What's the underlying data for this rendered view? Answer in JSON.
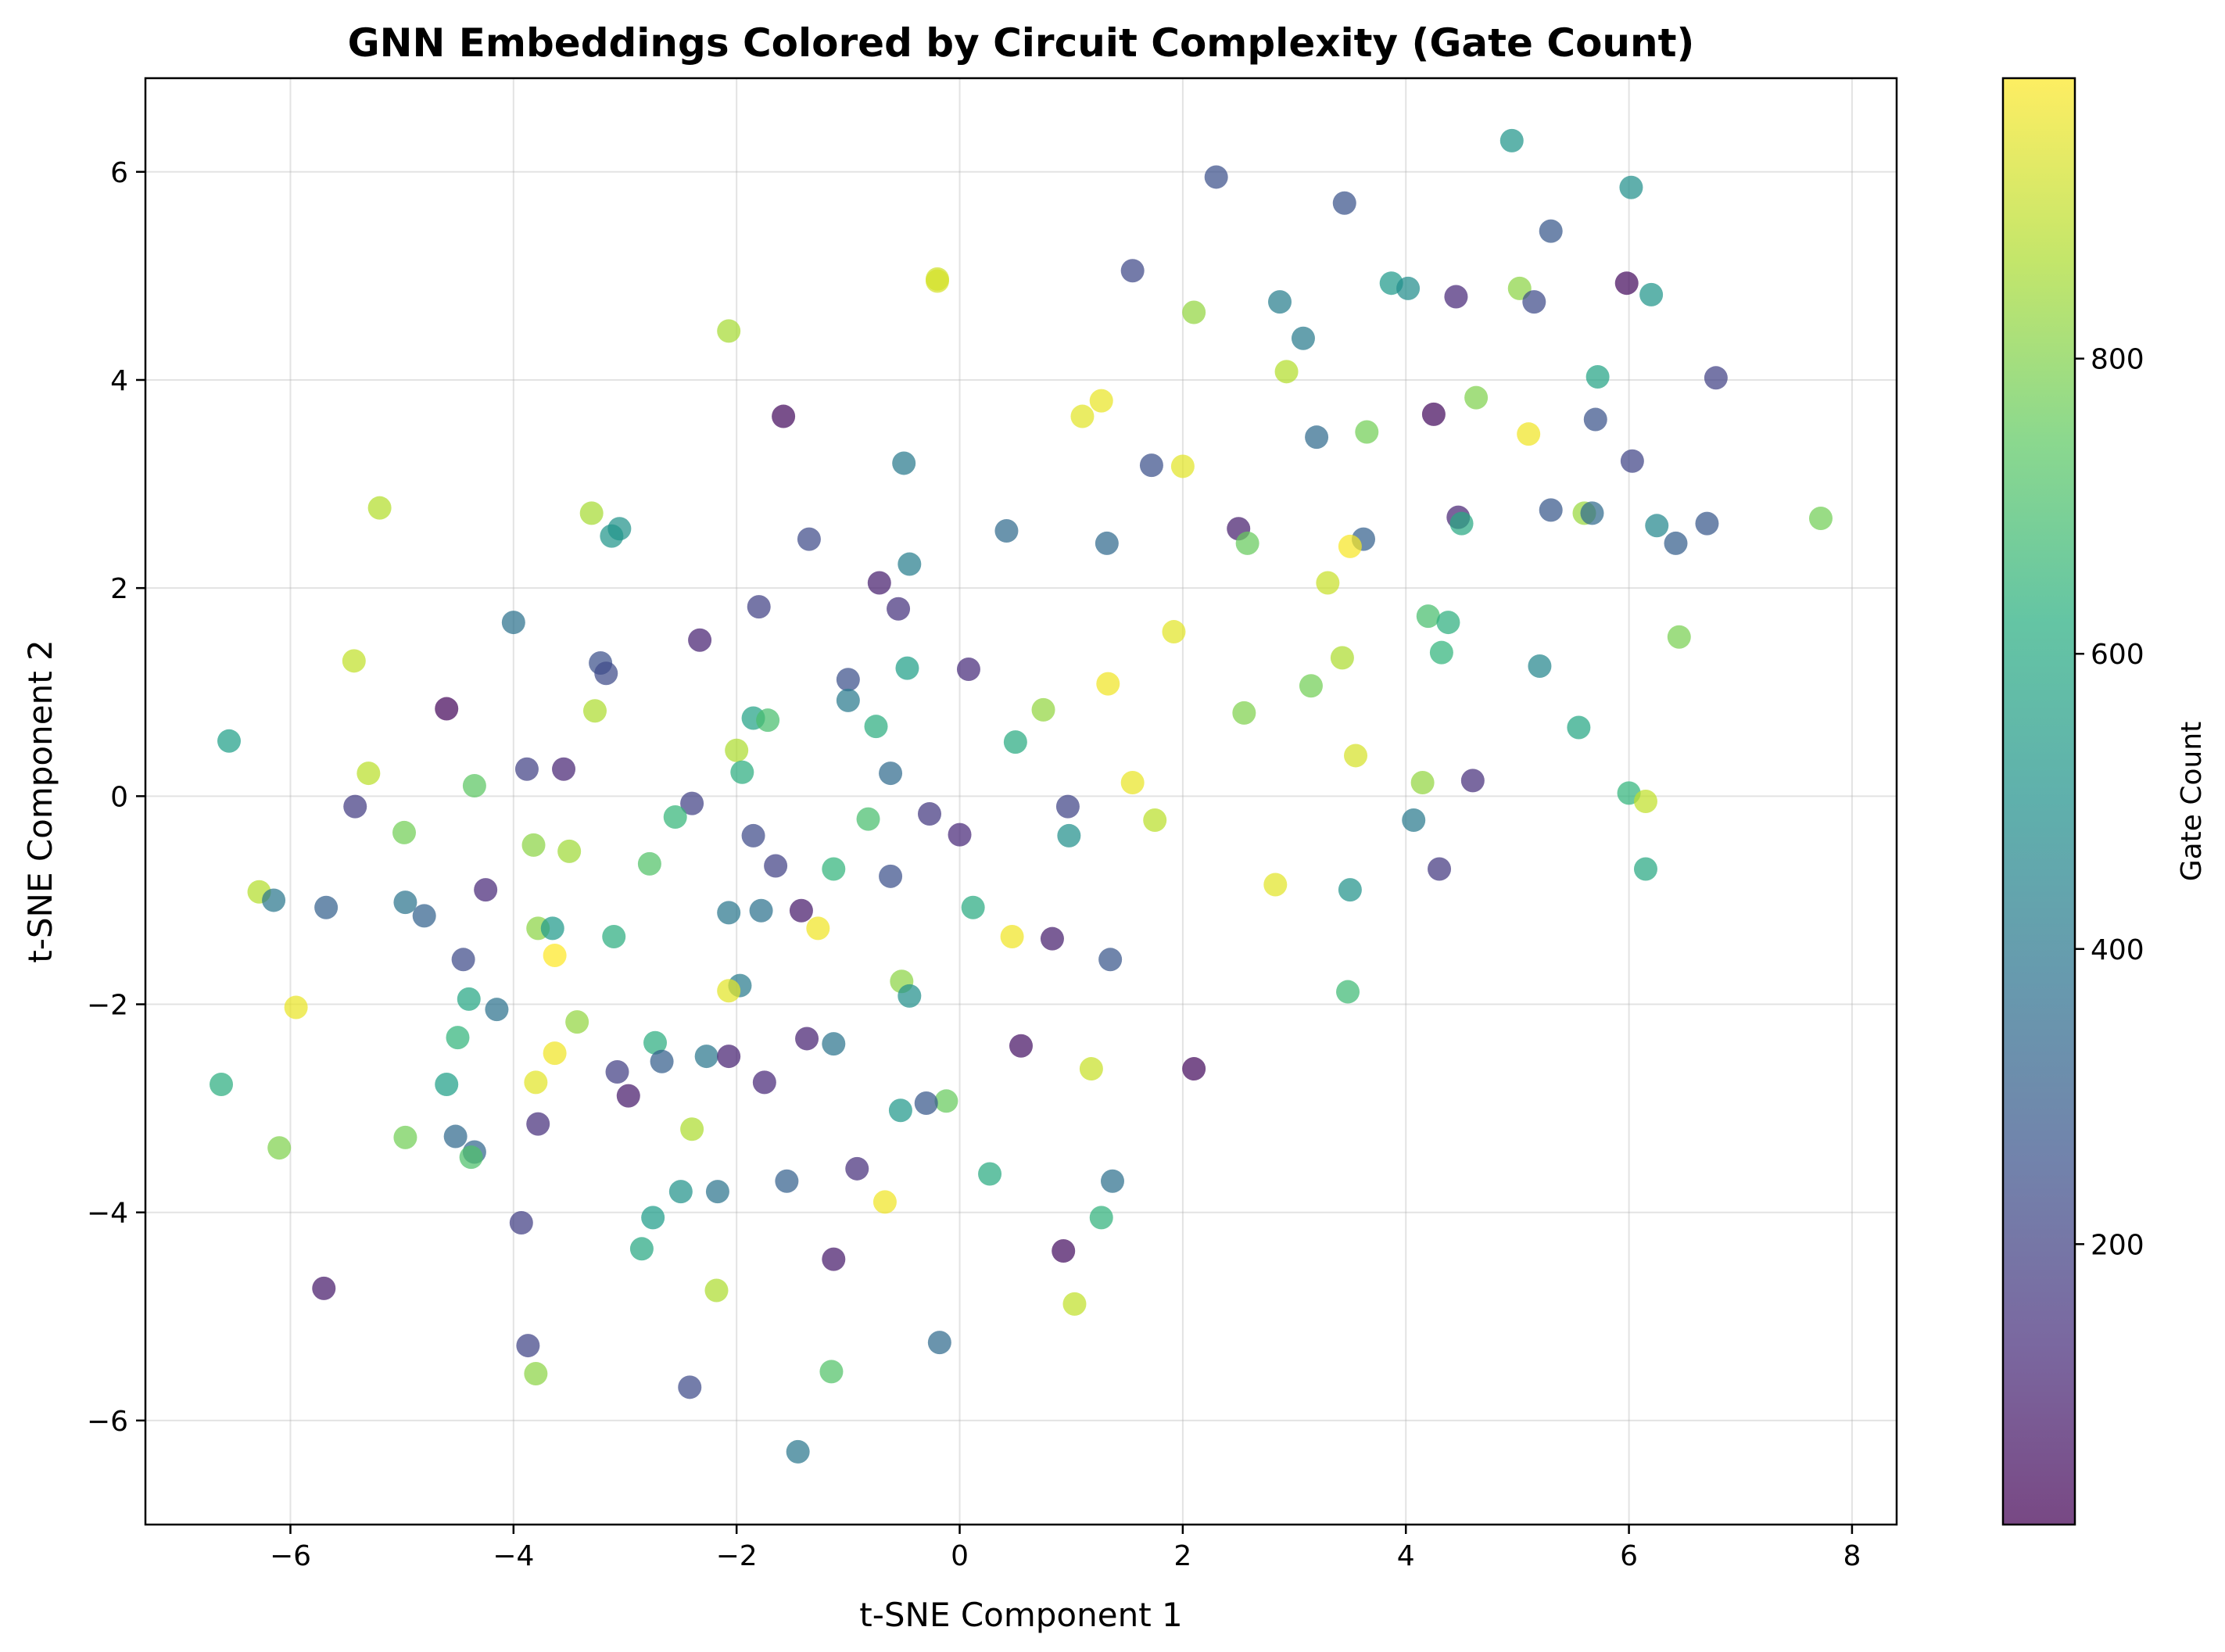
{
  "chart_data": {
    "type": "scatter",
    "title": "GNN Embeddings Colored by Circuit Complexity (Gate Count)",
    "xlabel": "t-SNE Component 1",
    "ylabel": "t-SNE Component 2",
    "xlim": [
      -7.3,
      8.4
    ],
    "ylim": [
      -7.0,
      6.9
    ],
    "xticks": [
      -6,
      -4,
      -2,
      0,
      2,
      4,
      6,
      8
    ],
    "yticks": [
      -6,
      -4,
      -2,
      0,
      2,
      4,
      6
    ],
    "grid": true,
    "colormap": "viridis",
    "colorbar": {
      "label": "Gate Count",
      "range": [
        10,
        990
      ],
      "ticks": [
        200,
        400,
        600,
        800
      ]
    },
    "points": [
      {
        "x": 4.95,
        "y": 6.3,
        "c": 520
      },
      {
        "x": 2.3,
        "y": 5.95,
        "c": 250
      },
      {
        "x": 6.02,
        "y": 5.85,
        "c": 500
      },
      {
        "x": 3.45,
        "y": 5.7,
        "c": 260
      },
      {
        "x": 5.3,
        "y": 5.43,
        "c": 280
      },
      {
        "x": 1.55,
        "y": 5.05,
        "c": 220
      },
      {
        "x": -0.2,
        "y": 4.97,
        "c": 920
      },
      {
        "x": -0.2,
        "y": 4.95,
        "c": 930
      },
      {
        "x": 5.98,
        "y": 4.93,
        "c": 40
      },
      {
        "x": 3.87,
        "y": 4.93,
        "c": 540
      },
      {
        "x": 4.02,
        "y": 4.88,
        "c": 490
      },
      {
        "x": 5.02,
        "y": 4.88,
        "c": 820
      },
      {
        "x": 6.2,
        "y": 4.82,
        "c": 520
      },
      {
        "x": 4.45,
        "y": 4.8,
        "c": 120
      },
      {
        "x": 2.87,
        "y": 4.75,
        "c": 430
      },
      {
        "x": 5.15,
        "y": 4.75,
        "c": 230
      },
      {
        "x": 2.1,
        "y": 4.65,
        "c": 830
      },
      {
        "x": -2.07,
        "y": 4.47,
        "c": 860
      },
      {
        "x": 3.08,
        "y": 4.4,
        "c": 420
      },
      {
        "x": 2.93,
        "y": 4.08,
        "c": 880
      },
      {
        "x": 5.72,
        "y": 4.03,
        "c": 580
      },
      {
        "x": 6.78,
        "y": 4.02,
        "c": 200
      },
      {
        "x": 4.63,
        "y": 3.83,
        "c": 800
      },
      {
        "x": 1.27,
        "y": 3.8,
        "c": 960
      },
      {
        "x": 1.1,
        "y": 3.65,
        "c": 950
      },
      {
        "x": -1.58,
        "y": 3.65,
        "c": 40
      },
      {
        "x": 4.25,
        "y": 3.67,
        "c": 40
      },
      {
        "x": 5.7,
        "y": 3.62,
        "c": 260
      },
      {
        "x": 3.65,
        "y": 3.5,
        "c": 780
      },
      {
        "x": 5.1,
        "y": 3.48,
        "c": 970
      },
      {
        "x": 3.2,
        "y": 3.45,
        "c": 350
      },
      {
        "x": 6.03,
        "y": 3.22,
        "c": 210
      },
      {
        "x": -0.5,
        "y": 3.2,
        "c": 410
      },
      {
        "x": 1.72,
        "y": 3.18,
        "c": 250
      },
      {
        "x": 2.0,
        "y": 3.17,
        "c": 950
      },
      {
        "x": -5.2,
        "y": 2.77,
        "c": 880
      },
      {
        "x": -3.3,
        "y": 2.72,
        "c": 860
      },
      {
        "x": 5.3,
        "y": 2.75,
        "c": 280
      },
      {
        "x": 5.6,
        "y": 2.72,
        "c": 840
      },
      {
        "x": 5.67,
        "y": 2.72,
        "c": 350
      },
      {
        "x": 7.72,
        "y": 2.67,
        "c": 780
      },
      {
        "x": 4.47,
        "y": 2.68,
        "c": 110
      },
      {
        "x": 4.5,
        "y": 2.62,
        "c": 600
      },
      {
        "x": 6.25,
        "y": 2.6,
        "c": 470
      },
      {
        "x": 6.7,
        "y": 2.62,
        "c": 280
      },
      {
        "x": 2.5,
        "y": 2.57,
        "c": 90
      },
      {
        "x": -3.05,
        "y": 2.57,
        "c": 510
      },
      {
        "x": -3.12,
        "y": 2.5,
        "c": 520
      },
      {
        "x": 0.42,
        "y": 2.55,
        "c": 350
      },
      {
        "x": -1.35,
        "y": 2.47,
        "c": 230
      },
      {
        "x": 3.62,
        "y": 2.47,
        "c": 310
      },
      {
        "x": 1.32,
        "y": 2.43,
        "c": 340
      },
      {
        "x": 2.58,
        "y": 2.43,
        "c": 760
      },
      {
        "x": 6.42,
        "y": 2.43,
        "c": 300
      },
      {
        "x": 3.5,
        "y": 2.4,
        "c": 980
      },
      {
        "x": -0.45,
        "y": 2.23,
        "c": 430
      },
      {
        "x": -0.72,
        "y": 2.05,
        "c": 90
      },
      {
        "x": 3.3,
        "y": 2.05,
        "c": 910
      },
      {
        "x": -1.8,
        "y": 1.82,
        "c": 200
      },
      {
        "x": -0.55,
        "y": 1.8,
        "c": 150
      },
      {
        "x": 4.2,
        "y": 1.73,
        "c": 700
      },
      {
        "x": -4.0,
        "y": 1.67,
        "c": 380
      },
      {
        "x": 4.38,
        "y": 1.67,
        "c": 630
      },
      {
        "x": 1.92,
        "y": 1.58,
        "c": 950
      },
      {
        "x": 6.45,
        "y": 1.53,
        "c": 790
      },
      {
        "x": -2.33,
        "y": 1.5,
        "c": 100
      },
      {
        "x": 4.32,
        "y": 1.38,
        "c": 650
      },
      {
        "x": 3.43,
        "y": 1.33,
        "c": 870
      },
      {
        "x": -5.43,
        "y": 1.3,
        "c": 900
      },
      {
        "x": -3.22,
        "y": 1.28,
        "c": 250
      },
      {
        "x": -0.47,
        "y": 1.23,
        "c": 560
      },
      {
        "x": 0.08,
        "y": 1.22,
        "c": 130
      },
      {
        "x": 5.2,
        "y": 1.25,
        "c": 460
      },
      {
        "x": -3.17,
        "y": 1.18,
        "c": 230
      },
      {
        "x": -1.0,
        "y": 1.12,
        "c": 250
      },
      {
        "x": 1.33,
        "y": 1.08,
        "c": 970
      },
      {
        "x": 3.15,
        "y": 1.06,
        "c": 780
      },
      {
        "x": -1.0,
        "y": 0.92,
        "c": 410
      },
      {
        "x": -4.6,
        "y": 0.84,
        "c": 30
      },
      {
        "x": 0.75,
        "y": 0.83,
        "c": 830
      },
      {
        "x": -3.27,
        "y": 0.82,
        "c": 870
      },
      {
        "x": 2.55,
        "y": 0.8,
        "c": 800
      },
      {
        "x": -1.85,
        "y": 0.75,
        "c": 570
      },
      {
        "x": -1.72,
        "y": 0.73,
        "c": 700
      },
      {
        "x": -0.75,
        "y": 0.67,
        "c": 620
      },
      {
        "x": 5.55,
        "y": 0.66,
        "c": 590
      },
      {
        "x": -6.55,
        "y": 0.53,
        "c": 560
      },
      {
        "x": 0.5,
        "y": 0.52,
        "c": 610
      },
      {
        "x": -2.0,
        "y": 0.44,
        "c": 870
      },
      {
        "x": 3.55,
        "y": 0.39,
        "c": 930
      },
      {
        "x": -3.88,
        "y": 0.26,
        "c": 200
      },
      {
        "x": -3.55,
        "y": 0.26,
        "c": 110
      },
      {
        "x": -5.3,
        "y": 0.22,
        "c": 890
      },
      {
        "x": -1.95,
        "y": 0.23,
        "c": 620
      },
      {
        "x": -0.62,
        "y": 0.22,
        "c": 350
      },
      {
        "x": 4.6,
        "y": 0.15,
        "c": 140
      },
      {
        "x": 1.55,
        "y": 0.13,
        "c": 960
      },
      {
        "x": 4.15,
        "y": 0.13,
        "c": 830
      },
      {
        "x": -4.35,
        "y": 0.1,
        "c": 740
      },
      {
        "x": 6.0,
        "y": 0.03,
        "c": 650
      },
      {
        "x": 6.15,
        "y": -0.05,
        "c": 900
      },
      {
        "x": -2.4,
        "y": -0.07,
        "c": 200
      },
      {
        "x": 0.97,
        "y": -0.1,
        "c": 210
      },
      {
        "x": -5.42,
        "y": -0.1,
        "c": 180
      },
      {
        "x": -0.27,
        "y": -0.17,
        "c": 170
      },
      {
        "x": -2.55,
        "y": -0.2,
        "c": 660
      },
      {
        "x": -0.82,
        "y": -0.22,
        "c": 700
      },
      {
        "x": 4.07,
        "y": -0.23,
        "c": 410
      },
      {
        "x": 1.75,
        "y": -0.23,
        "c": 890
      },
      {
        "x": -4.98,
        "y": -0.35,
        "c": 780
      },
      {
        "x": 0.0,
        "y": -0.37,
        "c": 120
      },
      {
        "x": 0.98,
        "y": -0.38,
        "c": 500
      },
      {
        "x": -1.85,
        "y": -0.38,
        "c": 230
      },
      {
        "x": -3.82,
        "y": -0.47,
        "c": 820
      },
      {
        "x": -3.5,
        "y": -0.53,
        "c": 850
      },
      {
        "x": -1.65,
        "y": -0.67,
        "c": 200
      },
      {
        "x": -2.78,
        "y": -0.65,
        "c": 720
      },
      {
        "x": -1.13,
        "y": -0.7,
        "c": 650
      },
      {
        "x": 4.3,
        "y": -0.7,
        "c": 170
      },
      {
        "x": 6.15,
        "y": -0.7,
        "c": 600
      },
      {
        "x": -0.62,
        "y": -0.77,
        "c": 250
      },
      {
        "x": 2.83,
        "y": -0.85,
        "c": 950
      },
      {
        "x": -4.25,
        "y": -0.9,
        "c": 120
      },
      {
        "x": 3.5,
        "y": -0.9,
        "c": 510
      },
      {
        "x": -6.28,
        "y": -0.92,
        "c": 880
      },
      {
        "x": -6.15,
        "y": -1.0,
        "c": 400
      },
      {
        "x": -4.97,
        "y": -1.02,
        "c": 390
      },
      {
        "x": -5.68,
        "y": -1.07,
        "c": 310
      },
      {
        "x": 0.12,
        "y": -1.07,
        "c": 610
      },
      {
        "x": -2.07,
        "y": -1.12,
        "c": 400
      },
      {
        "x": -1.78,
        "y": -1.1,
        "c": 380
      },
      {
        "x": -1.42,
        "y": -1.1,
        "c": 80
      },
      {
        "x": -4.8,
        "y": -1.15,
        "c": 320
      },
      {
        "x": -3.78,
        "y": -1.27,
        "c": 820
      },
      {
        "x": -3.65,
        "y": -1.27,
        "c": 540
      },
      {
        "x": -1.27,
        "y": -1.27,
        "c": 970
      },
      {
        "x": -3.1,
        "y": -1.35,
        "c": 620
      },
      {
        "x": 0.47,
        "y": -1.35,
        "c": 970
      },
      {
        "x": 0.83,
        "y": -1.37,
        "c": 90
      },
      {
        "x": -3.63,
        "y": -1.53,
        "c": 990
      },
      {
        "x": -4.45,
        "y": -1.57,
        "c": 230
      },
      {
        "x": 1.35,
        "y": -1.57,
        "c": 270
      },
      {
        "x": -0.52,
        "y": -1.78,
        "c": 820
      },
      {
        "x": -1.97,
        "y": -1.82,
        "c": 420
      },
      {
        "x": -2.07,
        "y": -1.87,
        "c": 950
      },
      {
        "x": 3.48,
        "y": -1.88,
        "c": 680
      },
      {
        "x": -0.45,
        "y": -1.92,
        "c": 500
      },
      {
        "x": -4.4,
        "y": -1.95,
        "c": 590
      },
      {
        "x": -5.95,
        "y": -2.03,
        "c": 960
      },
      {
        "x": -4.15,
        "y": -2.05,
        "c": 380
      },
      {
        "x": -3.43,
        "y": -2.17,
        "c": 830
      },
      {
        "x": -4.5,
        "y": -2.32,
        "c": 650
      },
      {
        "x": -2.73,
        "y": -2.37,
        "c": 620
      },
      {
        "x": 0.55,
        "y": -2.4,
        "c": 60
      },
      {
        "x": -1.13,
        "y": -2.38,
        "c": 390
      },
      {
        "x": -1.37,
        "y": -2.33,
        "c": 100
      },
      {
        "x": -3.63,
        "y": -2.47,
        "c": 970
      },
      {
        "x": -2.27,
        "y": -2.5,
        "c": 400
      },
      {
        "x": -2.07,
        "y": -2.5,
        "c": 100
      },
      {
        "x": -2.67,
        "y": -2.55,
        "c": 300
      },
      {
        "x": 1.18,
        "y": -2.62,
        "c": 910
      },
      {
        "x": 2.1,
        "y": -2.62,
        "c": 40
      },
      {
        "x": -3.07,
        "y": -2.65,
        "c": 190
      },
      {
        "x": -3.8,
        "y": -2.75,
        "c": 950
      },
      {
        "x": -1.75,
        "y": -2.75,
        "c": 120
      },
      {
        "x": -6.62,
        "y": -2.77,
        "c": 620
      },
      {
        "x": -4.6,
        "y": -2.77,
        "c": 560
      },
      {
        "x": -2.97,
        "y": -2.88,
        "c": 80
      },
      {
        "x": -0.12,
        "y": -2.93,
        "c": 760
      },
      {
        "x": -0.3,
        "y": -2.95,
        "c": 280
      },
      {
        "x": -0.53,
        "y": -3.02,
        "c": 530
      },
      {
        "x": -3.78,
        "y": -3.15,
        "c": 140
      },
      {
        "x": -2.4,
        "y": -3.2,
        "c": 870
      },
      {
        "x": -4.97,
        "y": -3.28,
        "c": 780
      },
      {
        "x": -4.52,
        "y": -3.27,
        "c": 340
      },
      {
        "x": -6.1,
        "y": -3.38,
        "c": 800
      },
      {
        "x": -4.35,
        "y": -3.42,
        "c": 330
      },
      {
        "x": -4.38,
        "y": -3.47,
        "c": 710
      },
      {
        "x": -0.92,
        "y": -3.58,
        "c": 140
      },
      {
        "x": 0.27,
        "y": -3.63,
        "c": 610
      },
      {
        "x": -1.55,
        "y": -3.7,
        "c": 310
      },
      {
        "x": 1.37,
        "y": -3.7,
        "c": 370
      },
      {
        "x": -2.5,
        "y": -3.8,
        "c": 510
      },
      {
        "x": -2.17,
        "y": -3.8,
        "c": 390
      },
      {
        "x": -0.67,
        "y": -3.9,
        "c": 970
      },
      {
        "x": 1.27,
        "y": -4.05,
        "c": 640
      },
      {
        "x": -2.75,
        "y": -4.05,
        "c": 550
      },
      {
        "x": -3.93,
        "y": -4.1,
        "c": 190
      },
      {
        "x": -2.85,
        "y": -4.35,
        "c": 600
      },
      {
        "x": 0.93,
        "y": -4.37,
        "c": 50
      },
      {
        "x": -1.13,
        "y": -4.45,
        "c": 80
      },
      {
        "x": -5.7,
        "y": -4.73,
        "c": 80
      },
      {
        "x": -2.18,
        "y": -4.75,
        "c": 870
      },
      {
        "x": 1.03,
        "y": -4.88,
        "c": 900
      },
      {
        "x": -0.18,
        "y": -5.25,
        "c": 350
      },
      {
        "x": -3.87,
        "y": -5.28,
        "c": 210
      },
      {
        "x": -3.8,
        "y": -5.55,
        "c": 820
      },
      {
        "x": -1.15,
        "y": -5.53,
        "c": 720
      },
      {
        "x": -2.42,
        "y": -5.68,
        "c": 230
      },
      {
        "x": -1.45,
        "y": -6.3,
        "c": 400
      }
    ]
  }
}
